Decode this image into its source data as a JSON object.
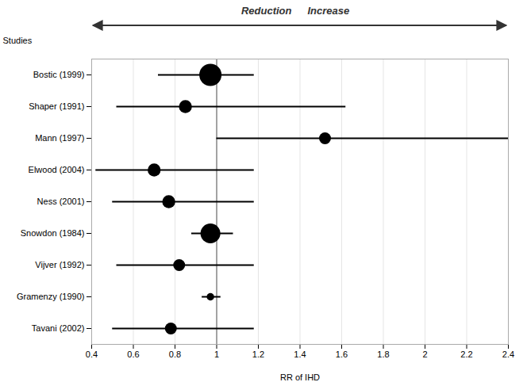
{
  "chart_data": {
    "type": "forest",
    "categories": [
      "Bostic (1999)",
      "Shaper (1991)",
      "Mann (1997)",
      "Elwood (2004)",
      "Ness (2001)",
      "Snowdon (1984)",
      "Vijver (1992)",
      "Gramenzy (1990)",
      "Tavani (2002)"
    ],
    "values": [
      0.97,
      0.85,
      1.52,
      0.7,
      0.77,
      0.97,
      0.82,
      0.97,
      0.78
    ],
    "ci_low": [
      0.72,
      0.52,
      1.0,
      0.42,
      0.5,
      0.88,
      0.52,
      0.93,
      0.5
    ],
    "ci_high": [
      1.18,
      1.62,
      2.4,
      1.18,
      1.18,
      1.08,
      1.18,
      1.02,
      1.18
    ],
    "sizes": [
      350,
      120,
      100,
      120,
      120,
      280,
      100,
      40,
      100
    ],
    "xlabel": "RR of IHD",
    "ylabel": "Studies",
    "xlim": [
      0.4,
      2.4
    ],
    "xticks": [
      0.4,
      0.6,
      0.8,
      1,
      1.2,
      1.4,
      1.6,
      1.8,
      2,
      2.2,
      2.4
    ],
    "grid": true,
    "reference_line": 1,
    "annotations": [
      "Reduction",
      "Increase"
    ]
  }
}
